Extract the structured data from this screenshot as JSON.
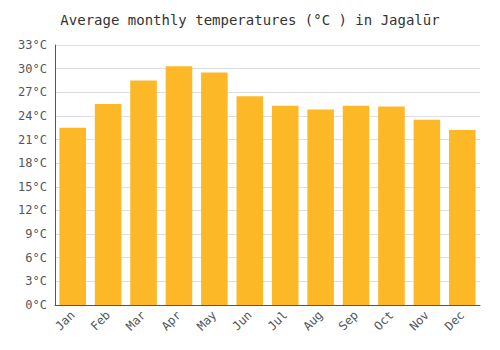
{
  "chart_data": {
    "type": "bar",
    "title": "Average monthly temperatures (°C ) in Jagalūr",
    "categories": [
      "Jan",
      "Feb",
      "Mar",
      "Apr",
      "May",
      "Jun",
      "Jul",
      "Aug",
      "Sep",
      "Oct",
      "Nov",
      "Dec"
    ],
    "values": [
      22.5,
      25.5,
      28.5,
      30.3,
      29.5,
      26.5,
      25.3,
      24.8,
      25.3,
      25.2,
      23.5,
      22.2
    ],
    "color": "#FDB827",
    "ylim": [
      0,
      33
    ],
    "yticks": [
      {
        "value": 0,
        "label": "0°C"
      },
      {
        "value": 3,
        "label": "3°C"
      },
      {
        "value": 6,
        "label": "6°C"
      },
      {
        "value": 9,
        "label": "9°C"
      },
      {
        "value": 12,
        "label": "12°C"
      },
      {
        "value": 15,
        "label": "15°C"
      },
      {
        "value": 18,
        "label": "18°C"
      },
      {
        "value": 21,
        "label": "21°C"
      },
      {
        "value": 24,
        "label": "24°C"
      },
      {
        "value": 27,
        "label": "27°C"
      },
      {
        "value": 30,
        "label": "30°C"
      },
      {
        "value": 33,
        "label": "33°C"
      }
    ],
    "grid": true
  }
}
